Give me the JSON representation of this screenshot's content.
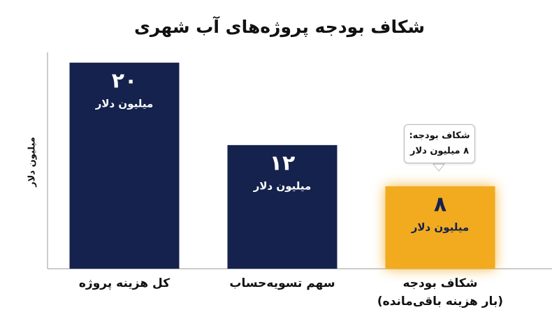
{
  "chart_data": {
    "type": "bar",
    "title": "شکاف بودجه پروژه‌های آب شهری",
    "y_label": "میلیون دلار",
    "categories": [
      "کل هزینه پروژه",
      "سهم تسویه‌حساب",
      "شکاف بودجه\n(بار هزینه باقی‌مانده)"
    ],
    "values": [
      20,
      12,
      8
    ],
    "value_labels": [
      "۲۰",
      "۱۲",
      "۸"
    ],
    "value_unit": "میلیون دلار",
    "colors": [
      "#14224d",
      "#14224d",
      "#f2aa1f"
    ],
    "ylim": [
      0,
      21
    ],
    "annotation": "شکاف بودجه:\n۸ میلیون دلار",
    "grid": false
  }
}
